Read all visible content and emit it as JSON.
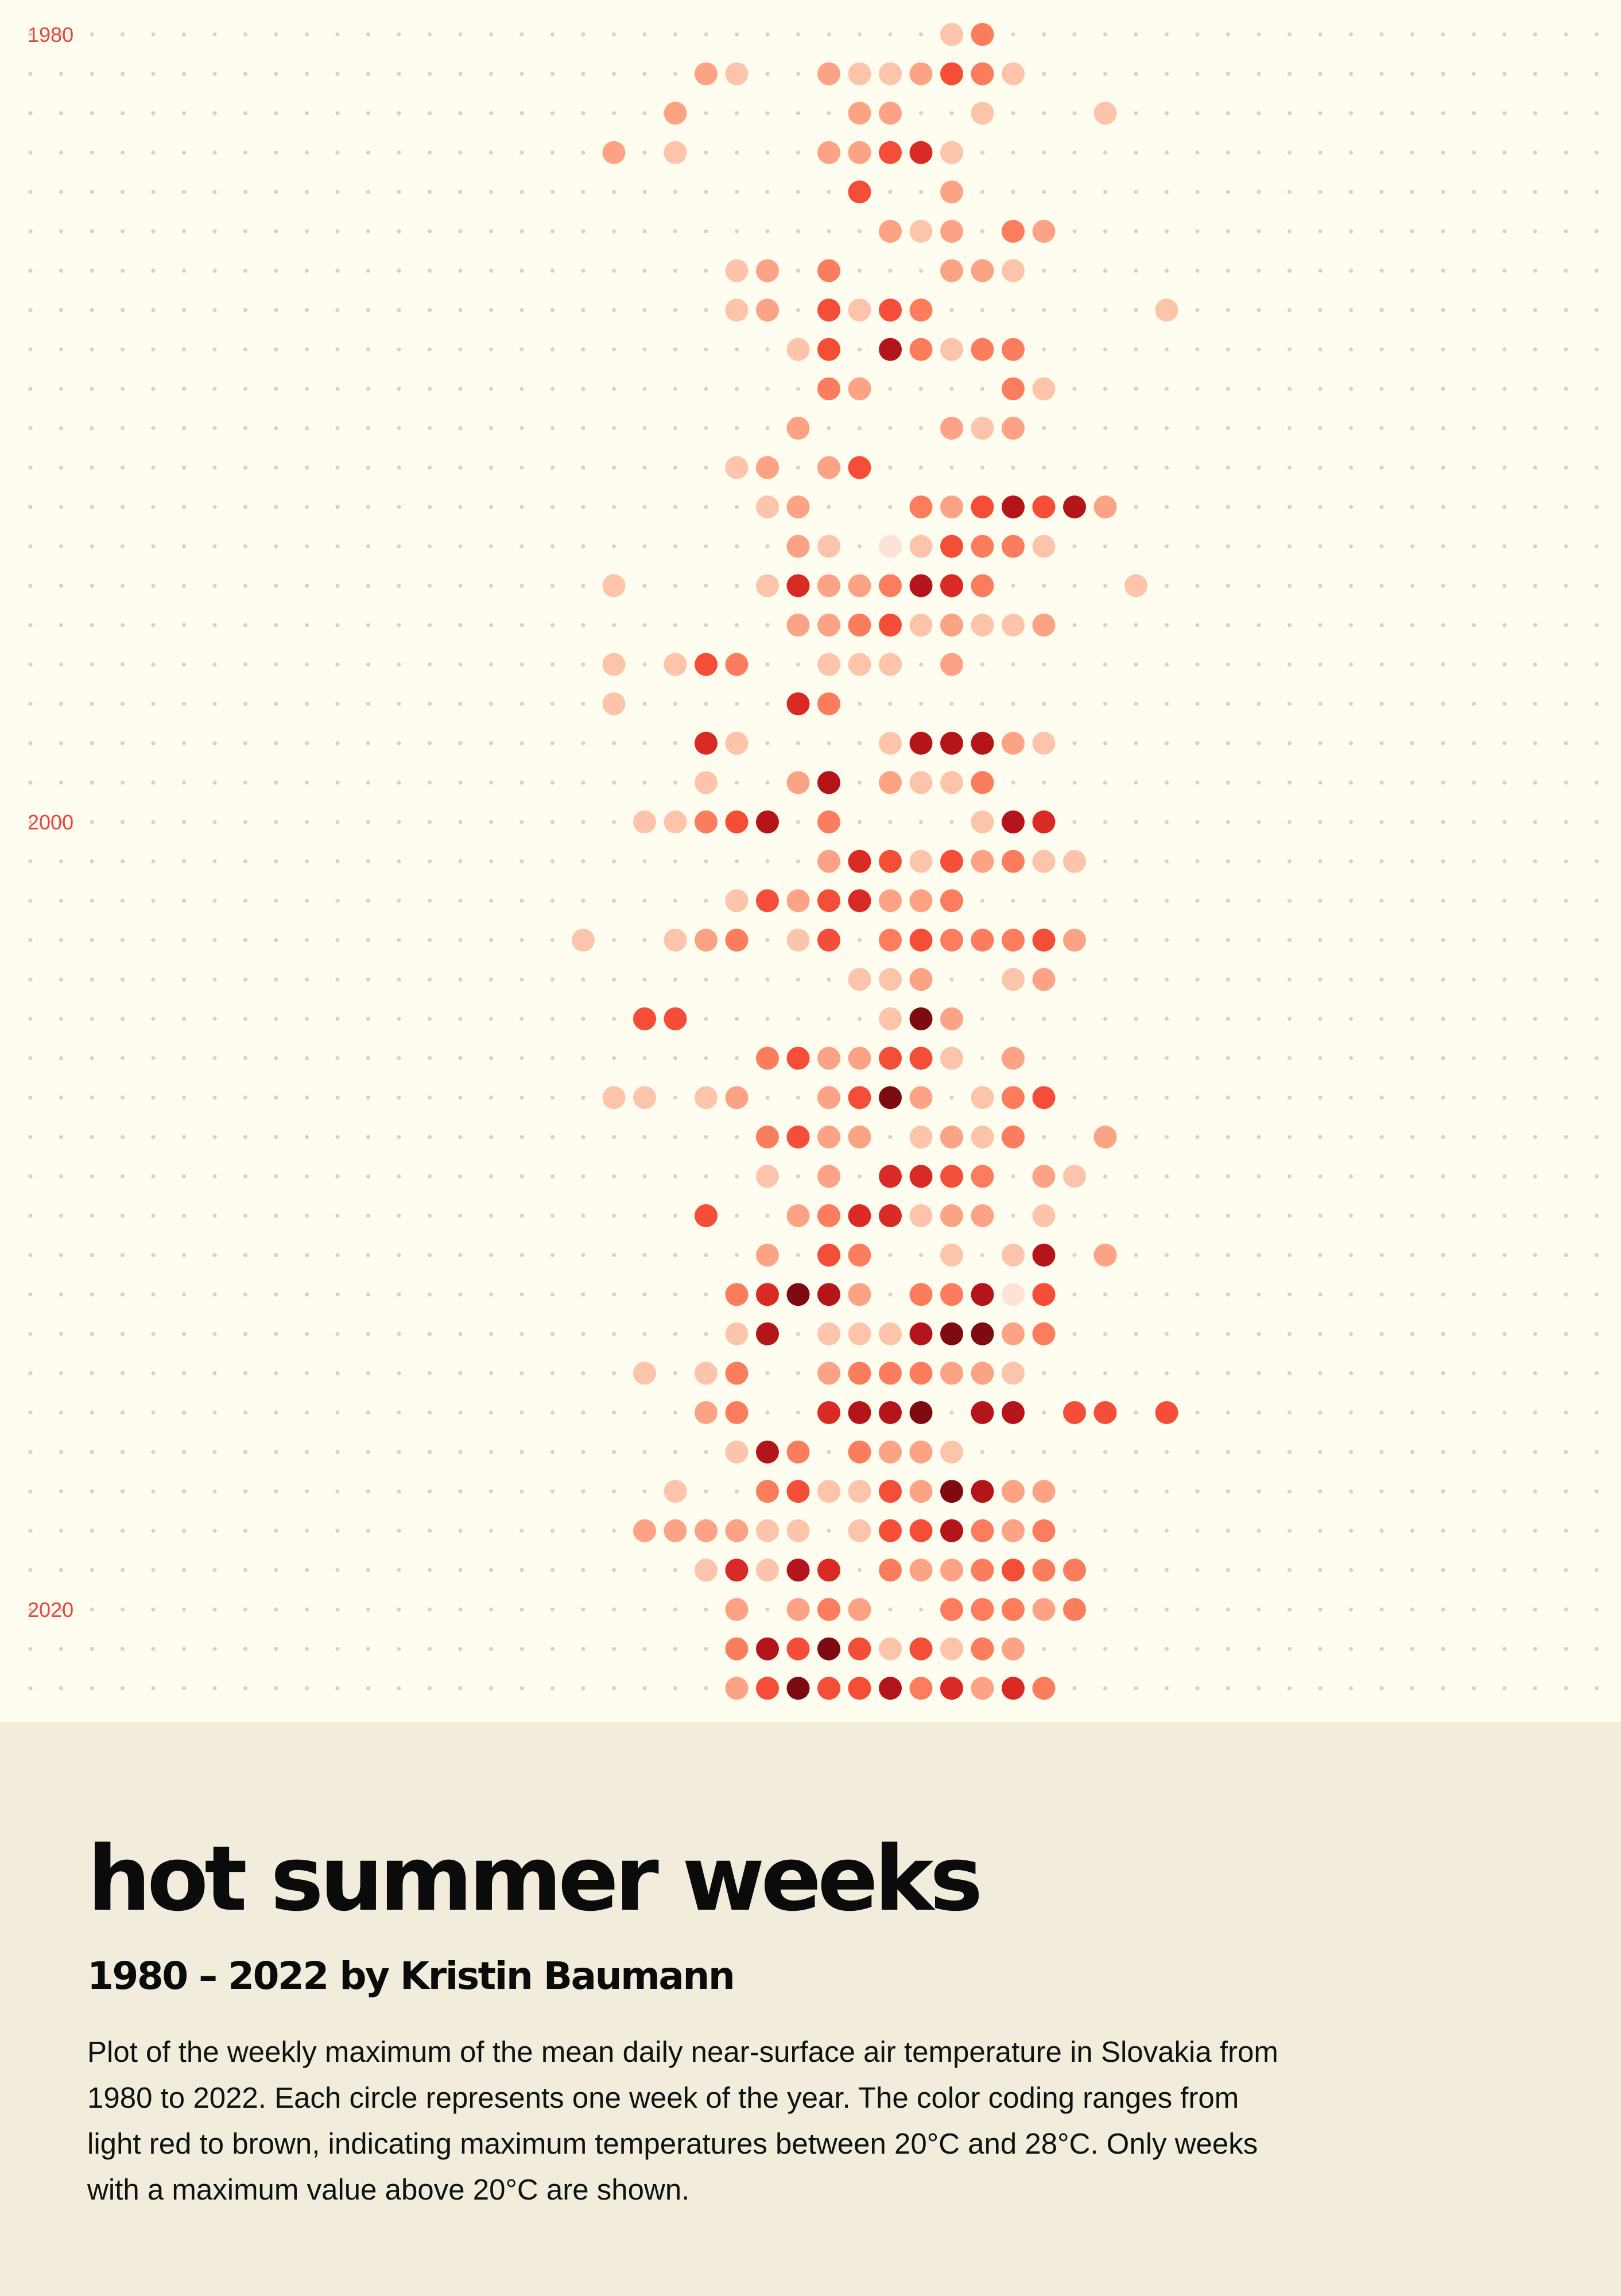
{
  "title": "hot summer weeks",
  "subtitle": "1980 – 2022 by Kristin Baumann",
  "description": "Plot of the weekly maximum of the mean daily near-surface air temperature in Slovakia from 1980 to 2022. Each circle represents one week of the year. The color coding ranges from light red to brown, indicating maximum temperatures between 20°C and 28°C. Only weeks with a maximum value above 20°C are shown.",
  "year_labels": {
    "y1980": "1980",
    "y2000": "2000",
    "y2020": "2020"
  },
  "colors": {
    "background": "#fefdef",
    "caption_background": "#f1ecdc",
    "grid_dot": "#d9d4c2",
    "year_label": "#e8453c",
    "scale": [
      "#fde3d7",
      "#fcc4ab",
      "#fca385",
      "#fb7d5d",
      "#f44d38",
      "#d92a26",
      "#b4151b",
      "#7f0b12"
    ]
  },
  "chart_data": {
    "type": "heatmap",
    "x_label": "",
    "y_label": "",
    "years": [
      1980,
      1981,
      1982,
      1983,
      1984,
      1985,
      1986,
      1987,
      1988,
      1989,
      1990,
      1991,
      1992,
      1993,
      1994,
      1995,
      1996,
      1997,
      1998,
      1999,
      2000,
      2001,
      2002,
      2003,
      2004,
      2005,
      2006,
      2007,
      2008,
      2009,
      2010,
      2011,
      2012,
      2013,
      2014,
      2015,
      2016,
      2017,
      2018,
      2019,
      2020,
      2021,
      2022
    ],
    "weeks_per_year": 52,
    "value_range_celsius": [
      20,
      28
    ],
    "threshold_celsius": 20,
    "note": "cells are [week_of_year, approx max temperature °C]; only weeks above 20°C shown",
    "data": [
      [
        [
          31,
          21.0
        ],
        [
          32,
          23.0
        ]
      ],
      [
        [
          23,
          22.0
        ],
        [
          24,
          21.0
        ],
        [
          27,
          22.0
        ],
        [
          28,
          21.5
        ],
        [
          29,
          21.0
        ],
        [
          30,
          22.0
        ],
        [
          31,
          24.5
        ],
        [
          32,
          23.0
        ],
        [
          33,
          21.5
        ]
      ],
      [
        [
          22,
          22.0
        ],
        [
          28,
          22.0
        ],
        [
          29,
          22.0
        ],
        [
          32,
          21.5
        ],
        [
          36,
          21.5
        ]
      ],
      [
        [
          20,
          22.0
        ],
        [
          22,
          21.5
        ],
        [
          27,
          22.0
        ],
        [
          28,
          22.0
        ],
        [
          29,
          24.5
        ],
        [
          30,
          25.0
        ],
        [
          31,
          21.5
        ]
      ],
      [
        [
          28,
          24.5
        ],
        [
          31,
          22.0
        ]
      ],
      [
        [
          29,
          22.5
        ],
        [
          30,
          21.0
        ],
        [
          31,
          22.5
        ],
        [
          33,
          23.0
        ],
        [
          34,
          22.0
        ]
      ],
      [
        [
          24,
          21.5
        ],
        [
          25,
          22.5
        ],
        [
          27,
          23.5
        ],
        [
          31,
          22.0
        ],
        [
          32,
          22.5
        ],
        [
          33,
          21.0
        ]
      ],
      [
        [
          24,
          21.5
        ],
        [
          25,
          22.5
        ],
        [
          27,
          24.5
        ],
        [
          28,
          21.0
        ],
        [
          29,
          24.5
        ],
        [
          30,
          23.0
        ],
        [
          38,
          21.5
        ]
      ],
      [
        [
          26,
          21.5
        ],
        [
          27,
          24.5
        ],
        [
          29,
          26.0
        ],
        [
          30,
          23.0
        ],
        [
          31,
          21.5
        ],
        [
          32,
          23.0
        ],
        [
          33,
          23.5
        ]
      ],
      [
        [
          27,
          23.5
        ],
        [
          28,
          22.0
        ],
        [
          33,
          23.5
        ],
        [
          34,
          21.5
        ]
      ],
      [
        [
          26,
          22.5
        ],
        [
          31,
          22.0
        ],
        [
          32,
          21.0
        ],
        [
          33,
          22.0
        ]
      ],
      [
        [
          24,
          21.0
        ],
        [
          25,
          22.0
        ],
        [
          27,
          22.0
        ],
        [
          28,
          24.0
        ]
      ],
      [
        [
          25,
          21.0
        ],
        [
          26,
          22.0
        ],
        [
          30,
          23.5
        ],
        [
          31,
          22.0
        ],
        [
          32,
          24.5
        ],
        [
          33,
          26.5
        ],
        [
          34,
          24.5
        ],
        [
          35,
          26.5
        ],
        [
          36,
          22.5
        ]
      ],
      [
        [
          26,
          22.5
        ],
        [
          27,
          21.0
        ],
        [
          29,
          20.5
        ],
        [
          30,
          21.5
        ],
        [
          31,
          24.5
        ],
        [
          32,
          23.5
        ],
        [
          33,
          23.5
        ],
        [
          34,
          21.0
        ]
      ],
      [
        [
          20,
          21.0
        ],
        [
          25,
          21.0
        ],
        [
          26,
          25.0
        ],
        [
          27,
          22.5
        ],
        [
          28,
          22.5
        ],
        [
          29,
          23.0
        ],
        [
          30,
          26.0
        ],
        [
          31,
          25.0
        ],
        [
          32,
          23.0
        ],
        [
          37,
          21.0
        ]
      ],
      [
        [
          26,
          22.0
        ],
        [
          27,
          22.5
        ],
        [
          28,
          23.5
        ],
        [
          29,
          24.5
        ],
        [
          30,
          21.5
        ],
        [
          31,
          22.0
        ],
        [
          32,
          21.0
        ],
        [
          33,
          21.0
        ],
        [
          34,
          22.5
        ]
      ],
      [
        [
          20,
          21.5
        ],
        [
          22,
          21.5
        ],
        [
          23,
          24.0
        ],
        [
          24,
          23.5
        ],
        [
          27,
          21.0
        ],
        [
          28,
          21.5
        ],
        [
          29,
          21.0
        ],
        [
          31,
          22.0
        ]
      ],
      [
        [
          20,
          21.0
        ],
        [
          26,
          25.0
        ],
        [
          27,
          23.0
        ]
      ],
      [
        [
          23,
          25.0
        ],
        [
          24,
          21.5
        ],
        [
          29,
          21.5
        ],
        [
          30,
          26.0
        ],
        [
          31,
          26.0
        ],
        [
          32,
          26.5
        ],
        [
          33,
          22.5
        ],
        [
          34,
          21.5
        ]
      ],
      [
        [
          23,
          21.0
        ],
        [
          26,
          22.5
        ],
        [
          27,
          26.0
        ],
        [
          29,
          22.0
        ],
        [
          30,
          21.0
        ],
        [
          31,
          21.5
        ],
        [
          32,
          23.0
        ]
      ],
      [
        [
          21,
          21.0
        ],
        [
          22,
          21.0
        ],
        [
          23,
          23.5
        ],
        [
          24,
          24.5
        ],
        [
          25,
          26.0
        ],
        [
          27,
          23.0
        ],
        [
          32,
          21.5
        ],
        [
          33,
          26.5
        ],
        [
          34,
          25.5
        ]
      ],
      [
        [
          27,
          22.5
        ],
        [
          28,
          25.5
        ],
        [
          29,
          24.5
        ],
        [
          30,
          21.5
        ],
        [
          31,
          24.0
        ],
        [
          32,
          22.0
        ],
        [
          33,
          23.0
        ],
        [
          34,
          21.5
        ],
        [
          35,
          21.0
        ]
      ],
      [
        [
          24,
          21.5
        ],
        [
          25,
          24.5
        ],
        [
          26,
          22.5
        ],
        [
          27,
          24.5
        ],
        [
          28,
          25.5
        ],
        [
          29,
          22.0
        ],
        [
          30,
          22.0
        ],
        [
          31,
          23.5
        ]
      ],
      [
        [
          19,
          21.5
        ],
        [
          22,
          21.0
        ],
        [
          23,
          22.5
        ],
        [
          24,
          23.5
        ],
        [
          26,
          21.5
        ],
        [
          27,
          24.5
        ],
        [
          29,
          23.5
        ],
        [
          30,
          24.0
        ],
        [
          31,
          23.5
        ],
        [
          32,
          23.5
        ],
        [
          33,
          23.5
        ],
        [
          34,
          24.5
        ],
        [
          35,
          22.5
        ]
      ],
      [
        [
          28,
          21.5
        ],
        [
          29,
          21.5
        ],
        [
          30,
          22.5
        ],
        [
          33,
          21.5
        ],
        [
          34,
          22.0
        ]
      ],
      [
        [
          21,
          24.0
        ],
        [
          22,
          24.0
        ],
        [
          29,
          21.0
        ],
        [
          30,
          27.0
        ],
        [
          31,
          22.0
        ]
      ],
      [
        [
          25,
          23.0
        ],
        [
          26,
          24.5
        ],
        [
          27,
          22.0
        ],
        [
          28,
          22.5
        ],
        [
          29,
          24.5
        ],
        [
          30,
          24.5
        ],
        [
          31,
          21.5
        ],
        [
          33,
          22.5
        ]
      ],
      [
        [
          20,
          21.0
        ],
        [
          21,
          21.5
        ],
        [
          23,
          21.0
        ],
        [
          24,
          22.5
        ],
        [
          27,
          22.5
        ],
        [
          28,
          24.0
        ],
        [
          29,
          27.5
        ],
        [
          30,
          22.5
        ],
        [
          32,
          21.0
        ],
        [
          33,
          23.5
        ],
        [
          34,
          24.5
        ]
      ],
      [
        [
          25,
          23.0
        ],
        [
          26,
          24.5
        ],
        [
          27,
          22.0
        ],
        [
          28,
          22.5
        ],
        [
          30,
          21.5
        ],
        [
          31,
          22.0
        ],
        [
          32,
          21.5
        ],
        [
          33,
          23.0
        ],
        [
          36,
          22.5
        ]
      ],
      [
        [
          25,
          21.0
        ],
        [
          27,
          22.5
        ],
        [
          29,
          25.0
        ],
        [
          30,
          25.5
        ],
        [
          31,
          24.5
        ],
        [
          32,
          23.0
        ],
        [
          34,
          22.0
        ],
        [
          35,
          21.5
        ]
      ],
      [
        [
          23,
          24.5
        ],
        [
          26,
          22.0
        ],
        [
          27,
          23.5
        ],
        [
          28,
          25.0
        ],
        [
          29,
          25.5
        ],
        [
          30,
          21.5
        ],
        [
          31,
          22.0
        ],
        [
          32,
          22.0
        ],
        [
          34,
          21.0
        ]
      ],
      [
        [
          25,
          22.5
        ],
        [
          27,
          24.5
        ],
        [
          28,
          23.5
        ],
        [
          31,
          21.5
        ],
        [
          33,
          21.5
        ],
        [
          34,
          26.0
        ],
        [
          36,
          22.5
        ]
      ],
      [
        [
          24,
          23.5
        ],
        [
          25,
          25.5
        ],
        [
          26,
          27.0
        ],
        [
          27,
          26.5
        ],
        [
          28,
          22.5
        ],
        [
          30,
          23.5
        ],
        [
          31,
          23.0
        ],
        [
          32,
          26.5
        ],
        [
          33,
          20.5
        ],
        [
          34,
          24.5
        ]
      ],
      [
        [
          24,
          21.0
        ],
        [
          25,
          26.0
        ],
        [
          27,
          21.0
        ],
        [
          28,
          21.0
        ],
        [
          29,
          21.5
        ],
        [
          30,
          26.5
        ],
        [
          31,
          27.5
        ],
        [
          32,
          27.5
        ],
        [
          33,
          22.0
        ],
        [
          34,
          23.0
        ]
      ],
      [
        [
          21,
          21.0
        ],
        [
          23,
          21.5
        ],
        [
          24,
          23.5
        ],
        [
          27,
          22.0
        ],
        [
          28,
          23.0
        ],
        [
          29,
          23.5
        ],
        [
          30,
          23.0
        ],
        [
          31,
          22.5
        ],
        [
          32,
          22.0
        ],
        [
          33,
          21.5
        ]
      ],
      [
        [
          23,
          22.0
        ],
        [
          24,
          23.5
        ],
        [
          27,
          25.0
        ],
        [
          28,
          26.0
        ],
        [
          29,
          26.5
        ],
        [
          30,
          27.0
        ],
        [
          32,
          26.0
        ],
        [
          33,
          26.0
        ],
        [
          35,
          24.5
        ],
        [
          36,
          24.5
        ],
        [
          38,
          24.0
        ]
      ],
      [
        [
          24,
          21.0
        ],
        [
          25,
          26.0
        ],
        [
          26,
          23.5
        ],
        [
          28,
          23.5
        ],
        [
          29,
          22.0
        ],
        [
          30,
          22.0
        ],
        [
          31,
          21.5
        ]
      ],
      [
        [
          22,
          21.0
        ],
        [
          25,
          23.0
        ],
        [
          26,
          24.5
        ],
        [
          27,
          21.0
        ],
        [
          28,
          21.5
        ],
        [
          29,
          24.0
        ],
        [
          30,
          22.5
        ],
        [
          31,
          27.0
        ],
        [
          32,
          26.0
        ],
        [
          33,
          22.5
        ],
        [
          34,
          22.0
        ]
      ],
      [
        [
          21,
          22.0
        ],
        [
          22,
          22.0
        ],
        [
          23,
          22.0
        ],
        [
          24,
          22.5
        ],
        [
          25,
          21.0
        ],
        [
          26,
          21.5
        ],
        [
          28,
          21.5
        ],
        [
          29,
          24.0
        ],
        [
          30,
          24.5
        ],
        [
          31,
          26.0
        ],
        [
          32,
          23.5
        ],
        [
          33,
          22.5
        ],
        [
          34,
          23.0
        ]
      ],
      [
        [
          23,
          21.0
        ],
        [
          24,
          25.5
        ],
        [
          25,
          21.5
        ],
        [
          26,
          26.0
        ],
        [
          27,
          25.0
        ],
        [
          29,
          23.0
        ],
        [
          30,
          22.5
        ],
        [
          31,
          22.5
        ],
        [
          32,
          23.5
        ],
        [
          33,
          24.5
        ],
        [
          34,
          23.0
        ],
        [
          35,
          23.0
        ]
      ],
      [
        [
          24,
          22.5
        ],
        [
          26,
          22.5
        ],
        [
          27,
          23.0
        ],
        [
          28,
          22.5
        ],
        [
          31,
          23.0
        ],
        [
          32,
          23.0
        ],
        [
          33,
          23.0
        ],
        [
          34,
          22.5
        ],
        [
          35,
          23.0
        ]
      ],
      [
        [
          24,
          23.5
        ],
        [
          25,
          26.0
        ],
        [
          26,
          24.5
        ],
        [
          27,
          27.5
        ],
        [
          28,
          24.5
        ],
        [
          29,
          21.5
        ],
        [
          30,
          24.5
        ],
        [
          31,
          21.0
        ],
        [
          32,
          23.0
        ],
        [
          33,
          22.0
        ]
      ],
      [
        [
          24,
          22.5
        ],
        [
          25,
          24.0
        ],
        [
          26,
          27.5
        ],
        [
          27,
          24.0
        ],
        [
          28,
          24.5
        ],
        [
          29,
          26.0
        ],
        [
          30,
          23.0
        ],
        [
          31,
          25.0
        ],
        [
          32,
          22.0
        ],
        [
          33,
          25.0
        ],
        [
          34,
          23.5
        ]
      ]
    ]
  }
}
